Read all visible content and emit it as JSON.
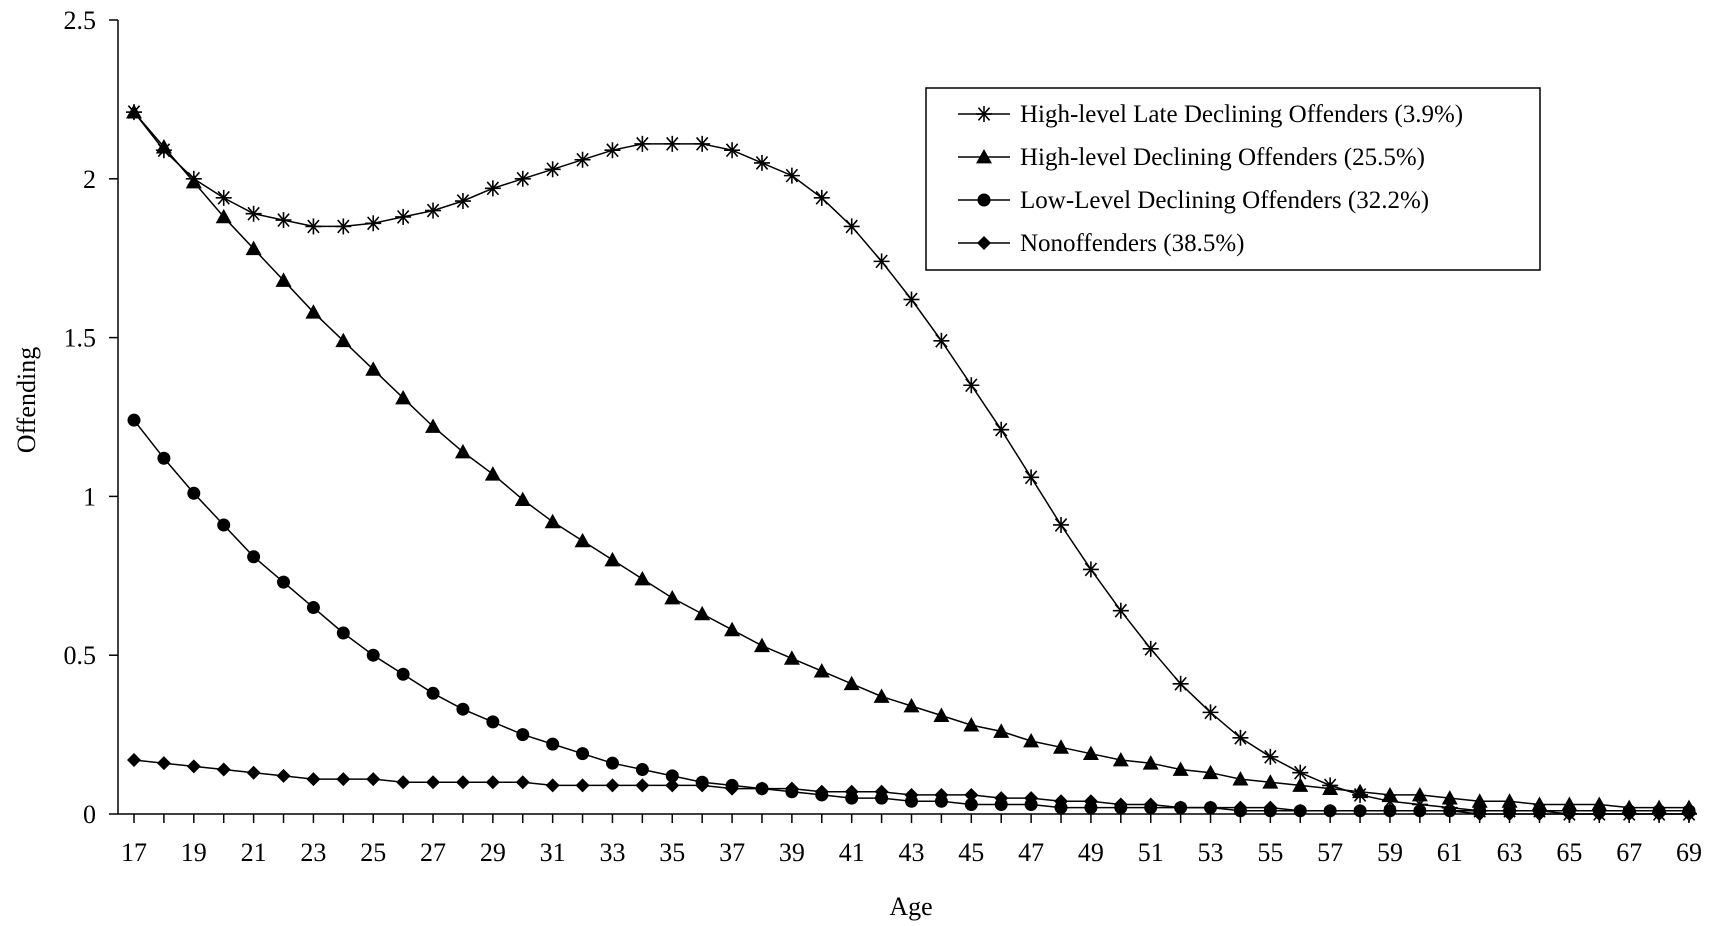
{
  "chart_data": {
    "type": "line",
    "title": "",
    "xlabel": "Age",
    "ylabel": "Offending",
    "ylim": [
      0,
      2.5
    ],
    "xlim": [
      17,
      69
    ],
    "yticks": [
      0,
      0.5,
      1,
      1.5,
      2,
      2.5
    ],
    "ytick_labels": [
      "0",
      "0.5",
      "1",
      "1.5",
      "2",
      "2.5"
    ],
    "xtick_labels": [
      "17",
      "19",
      "21",
      "23",
      "25",
      "27",
      "29",
      "31",
      "33",
      "35",
      "37",
      "39",
      "41",
      "43",
      "45",
      "47",
      "49",
      "51",
      "53",
      "55",
      "57",
      "59",
      "61",
      "63",
      "65",
      "67",
      "69"
    ],
    "legend_position": "top-right",
    "grid": false,
    "line_color": "#000000",
    "x": [
      17,
      18,
      19,
      20,
      21,
      22,
      23,
      24,
      25,
      26,
      27,
      28,
      29,
      30,
      31,
      32,
      33,
      34,
      35,
      36,
      37,
      38,
      39,
      40,
      41,
      42,
      43,
      44,
      45,
      46,
      47,
      48,
      49,
      50,
      51,
      52,
      53,
      54,
      55,
      56,
      57,
      58,
      59,
      60,
      61,
      62,
      63,
      64,
      65,
      66,
      67,
      68,
      69
    ],
    "series": [
      {
        "name": "High-level Late Declining Offenders (3.9%)",
        "marker": "star",
        "values": [
          2.21,
          2.09,
          2.0,
          1.94,
          1.89,
          1.87,
          1.85,
          1.85,
          1.86,
          1.88,
          1.9,
          1.93,
          1.97,
          2.0,
          2.03,
          2.06,
          2.09,
          2.11,
          2.11,
          2.11,
          2.09,
          2.05,
          2.01,
          1.94,
          1.85,
          1.74,
          1.62,
          1.49,
          1.35,
          1.21,
          1.06,
          0.91,
          0.77,
          0.64,
          0.52,
          0.41,
          0.32,
          0.24,
          0.18,
          0.13,
          0.09,
          0.06,
          0.04,
          0.03,
          0.02,
          0.01,
          0.01,
          0.01,
          0.0,
          0.0,
          0.0,
          0.0,
          0.0
        ]
      },
      {
        "name": "High-level Declining Offenders (25.5%)",
        "marker": "triangle",
        "values": [
          2.21,
          2.1,
          1.99,
          1.88,
          1.78,
          1.68,
          1.58,
          1.49,
          1.4,
          1.31,
          1.22,
          1.14,
          1.07,
          0.99,
          0.92,
          0.86,
          0.8,
          0.74,
          0.68,
          0.63,
          0.58,
          0.53,
          0.49,
          0.45,
          0.41,
          0.37,
          0.34,
          0.31,
          0.28,
          0.26,
          0.23,
          0.21,
          0.19,
          0.17,
          0.16,
          0.14,
          0.13,
          0.11,
          0.1,
          0.09,
          0.08,
          0.07,
          0.06,
          0.06,
          0.05,
          0.04,
          0.04,
          0.03,
          0.03,
          0.03,
          0.02,
          0.02,
          0.02
        ]
      },
      {
        "name": "Low-Level Declining Offenders (32.2%)",
        "marker": "circle",
        "values": [
          1.24,
          1.12,
          1.01,
          0.91,
          0.81,
          0.73,
          0.65,
          0.57,
          0.5,
          0.44,
          0.38,
          0.33,
          0.29,
          0.25,
          0.22,
          0.19,
          0.16,
          0.14,
          0.12,
          0.1,
          0.09,
          0.08,
          0.07,
          0.06,
          0.05,
          0.05,
          0.04,
          0.04,
          0.03,
          0.03,
          0.03,
          0.02,
          0.02,
          0.02,
          0.02,
          0.02,
          0.02,
          0.01,
          0.01,
          0.01,
          0.01,
          0.01,
          0.01,
          0.01,
          0.01,
          0.01,
          0.01,
          0.01,
          0.01,
          0.01,
          0.01,
          0.01,
          0.01
        ]
      },
      {
        "name": "Nonoffenders (38.5%)",
        "marker": "diamond",
        "values": [
          0.17,
          0.16,
          0.15,
          0.14,
          0.13,
          0.12,
          0.11,
          0.11,
          0.11,
          0.1,
          0.1,
          0.1,
          0.1,
          0.1,
          0.09,
          0.09,
          0.09,
          0.09,
          0.09,
          0.09,
          0.08,
          0.08,
          0.08,
          0.07,
          0.07,
          0.07,
          0.06,
          0.06,
          0.06,
          0.05,
          0.05,
          0.04,
          0.04,
          0.03,
          0.03,
          0.02,
          0.02,
          0.02,
          0.02,
          0.01,
          0.01,
          0.01,
          0.01,
          0.01,
          0.01,
          0.0,
          0.0,
          0.0,
          0.0,
          0.0,
          0.0,
          0.0,
          0.0
        ]
      }
    ]
  }
}
